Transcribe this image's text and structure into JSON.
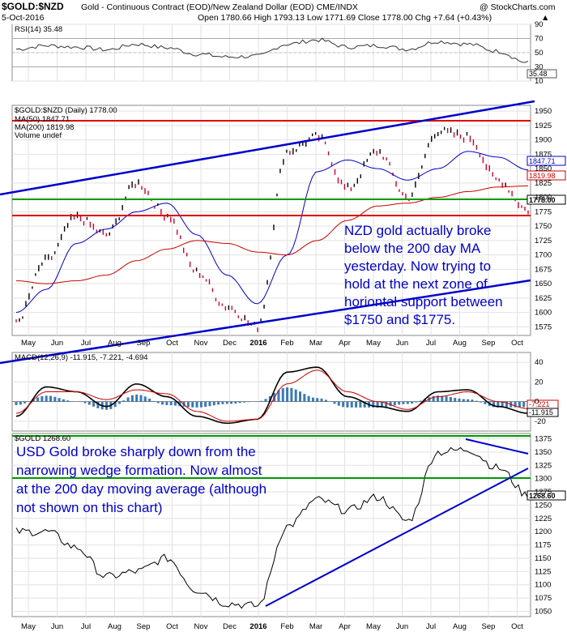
{
  "header": {
    "symbol": "$GOLD:$NZD",
    "description": "Gold - Continuous Contract (EOD)/New Zealand Dollar (EOD) CME/INDX",
    "watermark": "@ StockCharts.com",
    "date": "5-Oct-2016",
    "ohlc": "Open 1780.66  High 1793.13  Low 1771.69  Close 1778.00  Chg +7.64 (+0.43%)",
    "chg_arrow": "▲"
  },
  "rsi": {
    "title": "RSI(14) 35.48",
    "last_label": "35.48",
    "ticks": [
      "90",
      "70",
      "50",
      "30",
      "10"
    ]
  },
  "price": {
    "title": "$GOLD:$NZD (Daily) 1778.00",
    "legend": [
      {
        "text": "MA(50) 1847.71",
        "color": "#0000cc"
      },
      {
        "text": "MA(200) 1819.98",
        "color": "#cc0000"
      },
      {
        "text": "Volume undef",
        "color": "#333333"
      }
    ],
    "ticks": [
      "1950",
      "1925",
      "1900",
      "1875",
      "1850",
      "1825",
      "1800",
      "1775",
      "1750",
      "1725",
      "1700",
      "1675",
      "1650",
      "1625",
      "1600",
      "1575"
    ],
    "last_labels": {
      "ma50": "1847.71",
      "ma200": "1819.98",
      "close": "1778.00"
    },
    "annotation": [
      "NZD gold actually broke",
      "below the 200 day MA",
      "yesterday. Now trying to",
      "hold at the next zone of",
      "horiontal support between",
      "$1750 and $1775."
    ]
  },
  "macd": {
    "title": "MACD(12,26,9) -11.915, -7.221, -4.694",
    "ticks": [
      "40",
      "20",
      "0",
      "-20"
    ],
    "last_labels": [
      "-7.221",
      "-11.915"
    ]
  },
  "gold": {
    "title": "$GOLD 1268.60",
    "ticks": [
      "1375",
      "1350",
      "1325",
      "1300",
      "1275",
      "1250",
      "1225",
      "1200",
      "1175",
      "1150",
      "1125",
      "1100",
      "1075",
      "1050"
    ],
    "last_label": "1268.60",
    "annotation": [
      "USD Gold broke sharply down from the",
      "narrowing wedge formation. Now almost",
      "at the 200 day moving average (although",
      "not shown on this chart)"
    ]
  },
  "x_axis": {
    "labels": [
      "May",
      "Jun",
      "Jul",
      "Aug",
      "Sep",
      "Oct",
      "Nov",
      "Dec",
      "2016",
      "Feb",
      "Mar",
      "Apr",
      "May",
      "Jun",
      "Jul",
      "Aug",
      "Sep",
      "Oct"
    ]
  },
  "colors": {
    "trend": "#0000cc",
    "resistance": "#dd0000",
    "support": "#009900",
    "ma50": "#0000cc",
    "ma200": "#cc0000"
  },
  "chart_data": [
    {
      "type": "line",
      "title": "RSI(14) 35.48",
      "ylim": [
        10,
        90
      ],
      "x": [
        "May",
        "Jun",
        "Jul",
        "Aug",
        "Sep",
        "Oct",
        "Nov",
        "Dec",
        "2016",
        "Feb",
        "Mar",
        "Apr",
        "May",
        "Jun",
        "Jul",
        "Aug",
        "Sep",
        "Oct"
      ],
      "series": [
        {
          "name": "RSI(14)",
          "values": [
            55,
            60,
            58,
            54,
            62,
            57,
            48,
            44,
            45,
            62,
            68,
            58,
            60,
            55,
            66,
            62,
            52,
            35.48
          ]
        }
      ]
    },
    {
      "type": "line",
      "title": "$GOLD:$NZD (Daily) 1778.00",
      "ylim": [
        1560,
        1960
      ],
      "x": [
        "May",
        "Jun",
        "Jul",
        "Aug",
        "Sep",
        "Oct",
        "Nov",
        "Dec",
        "2016",
        "Feb",
        "Mar",
        "Apr",
        "May",
        "Jun",
        "Jul",
        "Aug",
        "Sep",
        "Oct"
      ],
      "series": [
        {
          "name": "$GOLD:$NZD",
          "values": [
            1585,
            1690,
            1765,
            1735,
            1825,
            1770,
            1670,
            1610,
            1575,
            1880,
            1905,
            1815,
            1880,
            1800,
            1915,
            1905,
            1830,
            1778
          ]
        },
        {
          "name": "MA(50)",
          "values": [
            1600,
            1640,
            1720,
            1745,
            1775,
            1790,
            1735,
            1665,
            1615,
            1700,
            1845,
            1865,
            1850,
            1830,
            1850,
            1880,
            1870,
            1847.71
          ]
        },
        {
          "name": "MA(200)",
          "values": [
            1655,
            1650,
            1655,
            1665,
            1690,
            1710,
            1725,
            1720,
            1705,
            1700,
            1725,
            1760,
            1785,
            1790,
            1800,
            1810,
            1818,
            1819.98
          ]
        }
      ]
    },
    {
      "type": "line",
      "title": "MACD(12,26,9) -11.915, -7.221, -4.694",
      "ylim": [
        -30,
        50
      ],
      "x": [
        "May",
        "Jun",
        "Jul",
        "Aug",
        "Sep",
        "Oct",
        "Nov",
        "Dec",
        "2016",
        "Feb",
        "Mar",
        "Apr",
        "May",
        "Jun",
        "Jul",
        "Aug",
        "Sep",
        "Oct"
      ],
      "series": [
        {
          "name": "MACD",
          "values": [
            -15,
            15,
            10,
            -5,
            18,
            5,
            -15,
            -22,
            -18,
            30,
            35,
            5,
            -5,
            -10,
            10,
            12,
            -5,
            -11.915
          ]
        },
        {
          "name": "Signal",
          "values": [
            -12,
            10,
            10,
            2,
            12,
            8,
            -10,
            -20,
            -18,
            18,
            32,
            10,
            0,
            -8,
            5,
            10,
            0,
            -7.221
          ]
        }
      ]
    },
    {
      "type": "line",
      "title": "$GOLD 1268.60",
      "ylim": [
        1040,
        1385
      ],
      "x": [
        "May",
        "Jun",
        "Jul",
        "Aug",
        "Sep",
        "Oct",
        "Nov",
        "Dec",
        "2016",
        "Feb",
        "Mar",
        "Apr",
        "May",
        "Jun",
        "Jul",
        "Aug",
        "Sep",
        "Oct"
      ],
      "series": [
        {
          "name": "$GOLD",
          "values": [
            1200,
            1200,
            1170,
            1115,
            1125,
            1150,
            1090,
            1065,
            1060,
            1210,
            1260,
            1240,
            1265,
            1220,
            1350,
            1355,
            1320,
            1268.6
          ]
        }
      ]
    }
  ]
}
